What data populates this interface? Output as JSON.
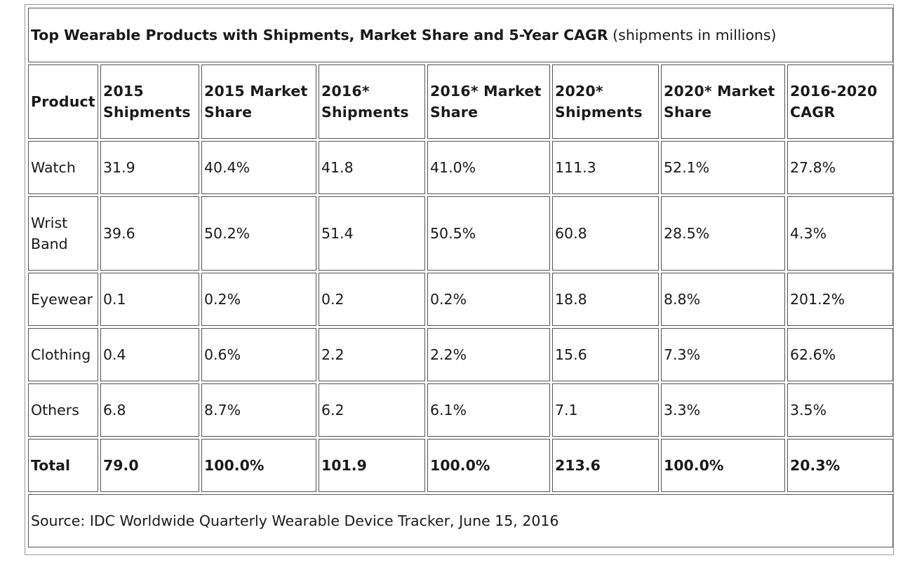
{
  "title": {
    "bold": "Top Wearable Products with Shipments, Market Share and 5-Year CAGR",
    "normal": " (shipments in millions)"
  },
  "headers": {
    "product": "Product",
    "s2015_line1": "2015",
    "s2015_line2": "Shipments",
    "ms2015_line1": "2015 Market",
    "ms2015_line2": "Share",
    "s2016_line1": "2016*",
    "s2016_line2": "Shipments",
    "ms2016_line1": "2016* Market",
    "ms2016_line2": "Share",
    "s2020_line1": "2020*",
    "s2020_line2": "Shipments",
    "ms2020_line1": "2020* Market",
    "ms2020_line2": "Share",
    "cagr_line1": "2016-2020",
    "cagr_line2": "CAGR"
  },
  "rows": [
    {
      "product": "Watch",
      "s2015": "31.9",
      "ms2015": "40.4%",
      "s2016": "41.8",
      "ms2016": "41.0%",
      "s2020": "111.3",
      "ms2020": "52.1%",
      "cagr": "27.8%"
    },
    {
      "product_line1": "Wrist",
      "product_line2": "Band",
      "s2015": "39.6",
      "ms2015": "50.2%",
      "s2016": "51.4",
      "ms2016": "50.5%",
      "s2020": "60.8",
      "ms2020": "28.5%",
      "cagr": "4.3%"
    },
    {
      "product": "Eyewear",
      "s2015": "0.1",
      "ms2015": "0.2%",
      "s2016": "0.2",
      "ms2016": "0.2%",
      "s2020": "18.8",
      "ms2020": "8.8%",
      "cagr": "201.2%"
    },
    {
      "product": "Clothing",
      "s2015": "0.4",
      "ms2015": "0.6%",
      "s2016": "2.2",
      "ms2016": "2.2%",
      "s2020": "15.6",
      "ms2020": "7.3%",
      "cagr": "62.6%"
    },
    {
      "product": "Others",
      "s2015": "6.8",
      "ms2015": "8.7%",
      "s2016": "6.2",
      "ms2016": "6.1%",
      "s2020": "7.1",
      "ms2020": "3.3%",
      "cagr": "3.5%"
    }
  ],
  "total": {
    "product": "Total",
    "s2015": "79.0",
    "ms2015": "100.0%",
    "s2016": "101.9",
    "ms2016": "100.0%",
    "s2020": "213.6",
    "ms2020": "100.0%",
    "cagr": "20.3%"
  },
  "source": "Source: IDC Worldwide Quarterly Wearable Device Tracker, June 15, 2016"
}
